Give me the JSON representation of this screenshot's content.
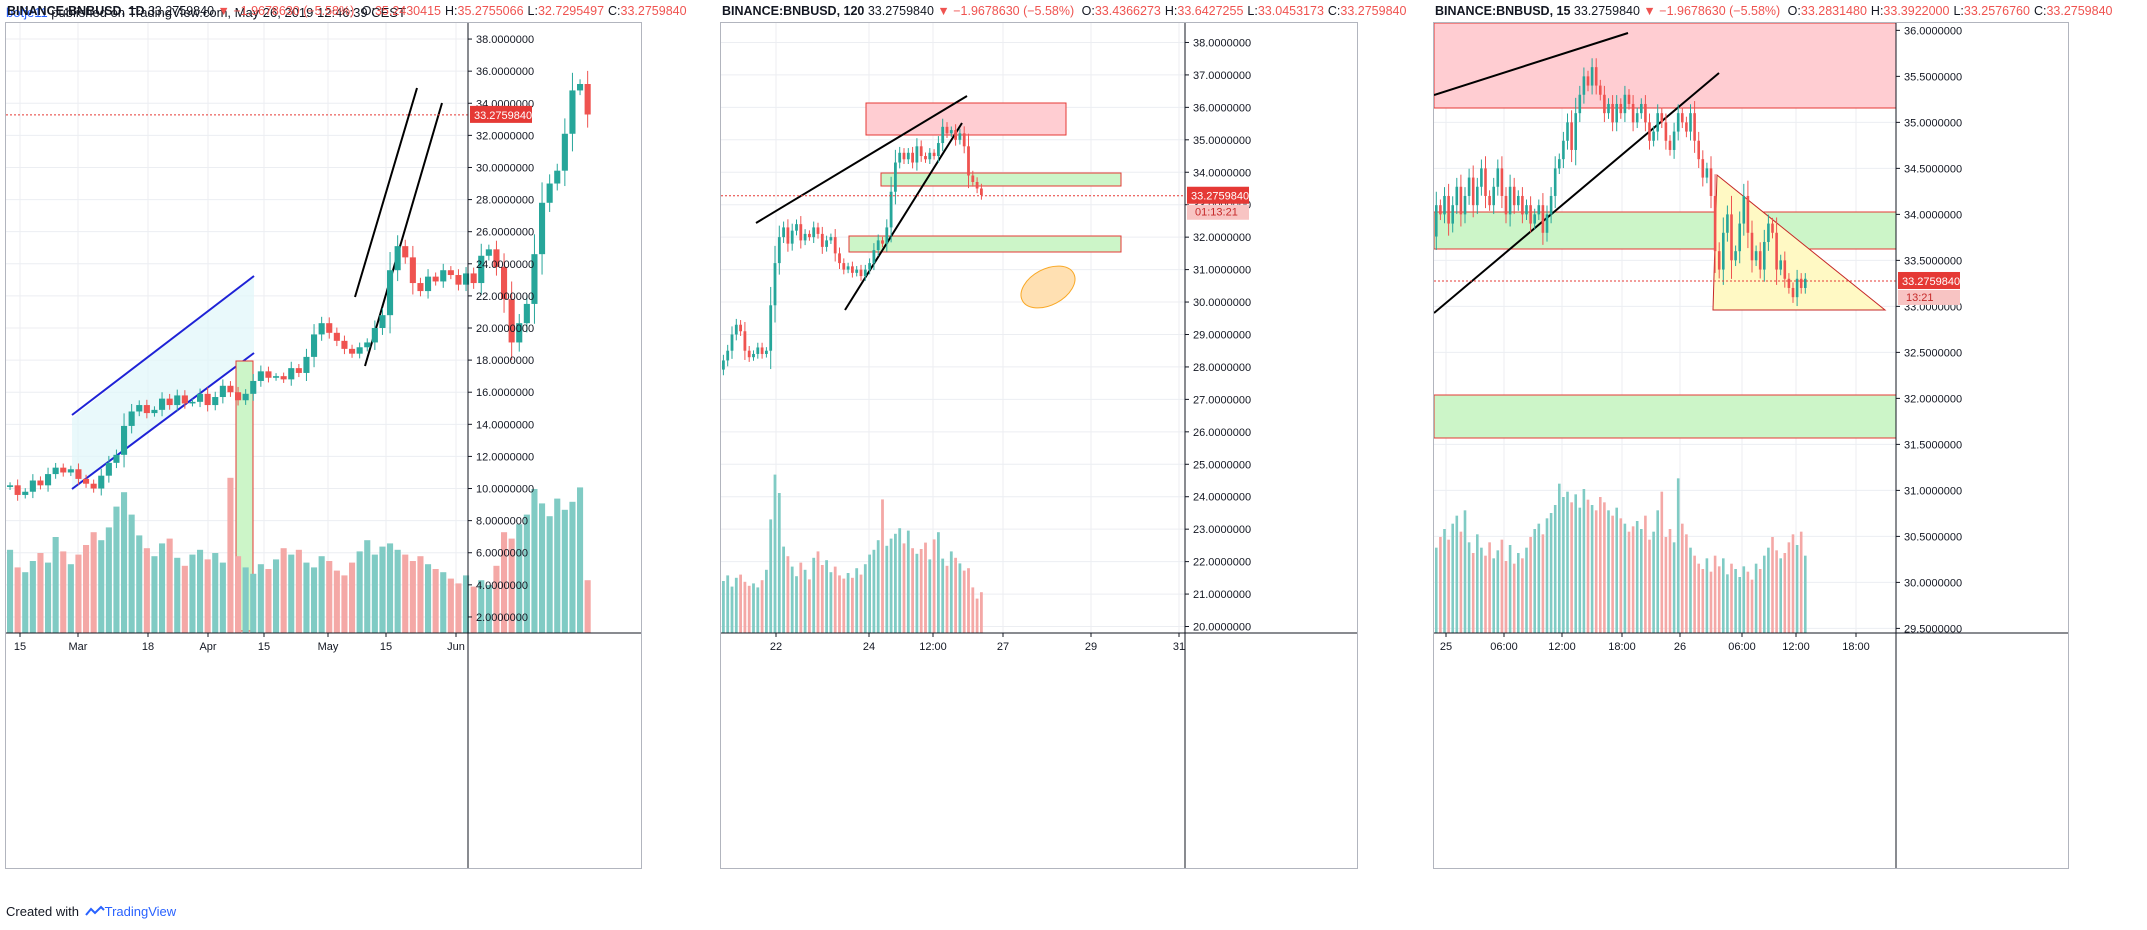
{
  "header": {
    "user": "botje11",
    "text": " published on TradingView.com, May 26, 2019 12:46:39 CEST"
  },
  "footer": {
    "created": "Created with",
    "brand": "TradingView"
  },
  "colors": {
    "up": "#26a69a",
    "down": "#ef5350",
    "upVol": "#80cbc4",
    "downVol": "#f4a8a6",
    "grid": "#eceef2",
    "axis": "#131722",
    "priceLine": "#e53935",
    "resistanceZone": "#ffcdd2",
    "supportZone": "#ccf5c8",
    "triangle": "#fff9c4",
    "ellipse": "#ffe0b2"
  },
  "chart_data": [
    {
      "type": "candlestick",
      "symbol": "BINANCE:BNBUSD, 1D",
      "last": "33.2759840",
      "change": "▼ −1.9678630 (−5.58%)",
      "ohlc": {
        "O": "35.2430415",
        "H": "35.2755066",
        "L": "32.7295497",
        "C": "33.2759840"
      },
      "price_label": "33.2759840",
      "ylim": [
        1,
        39
      ],
      "y_ticks": [
        "2.0000000",
        "4.0000000",
        "6.0000000",
        "8.0000000",
        "10.0000000",
        "12.0000000",
        "14.0000000",
        "16.0000000",
        "18.0000000",
        "20.0000000",
        "22.0000000",
        "24.0000000",
        "26.0000000",
        "28.0000000",
        "30.0000000",
        "32.0000000",
        "34.0000000",
        "36.0000000",
        "38.0000000"
      ],
      "x_ticks": [
        "15",
        "Mar",
        "18",
        "Apr",
        "15",
        "May",
        "15",
        "Jun"
      ],
      "closes": [
        10.2,
        9.6,
        9.8,
        10.5,
        10.2,
        10.9,
        11.3,
        11.0,
        11.2,
        10.6,
        10.3,
        10.0,
        10.8,
        11.6,
        12.1,
        13.9,
        14.8,
        15.2,
        14.7,
        14.9,
        15.6,
        15.2,
        15.8,
        15.3,
        15.4,
        15.9,
        15.2,
        15.7,
        16.4,
        16.0,
        15.5,
        15.9,
        16.7,
        17.3,
        16.9,
        17.0,
        16.8,
        17.5,
        17.2,
        18.2,
        19.6,
        20.3,
        19.7,
        19.2,
        18.7,
        18.4,
        18.8,
        19.1,
        20.0,
        20.8,
        23.6,
        25.1,
        24.4,
        22.8,
        22.3,
        23.2,
        22.9,
        23.6,
        23.3,
        22.7,
        23.4,
        22.8,
        24.5,
        24.9,
        23.8,
        21.8,
        19.1,
        20.3,
        21.5,
        24.6,
        27.8,
        29.0,
        29.8,
        32.1,
        34.8,
        35.2,
        33.3
      ],
      "volume": [
        5.2,
        4.1,
        3.8,
        4.5,
        5.0,
        4.4,
        6.0,
        5.1,
        4.3,
        4.9,
        5.5,
        6.3,
        5.8,
        6.6,
        7.9,
        8.8,
        7.4,
        6.1,
        5.3,
        4.8,
        5.6,
        5.9,
        4.7,
        4.2,
        4.9,
        5.2,
        4.6,
        5.0,
        4.4,
        9.7,
        4.8,
        4.1,
        3.7,
        4.3,
        4.0,
        4.6,
        5.3,
        4.9,
        5.2,
        4.4,
        4.1,
        4.8,
        4.5,
        3.9,
        3.6,
        4.4,
        5.1,
        5.8,
        4.9,
        5.4,
        5.6,
        5.2,
        4.9,
        4.5,
        4.8,
        4.3,
        4.0,
        3.8,
        3.4,
        3.1,
        3.6,
        2.9,
        3.3,
        3.0,
        4.2,
        6.3,
        5.9,
        6.8,
        7.4,
        9.0,
        8.1,
        7.3,
        8.4,
        7.7,
        8.2,
        9.1,
        3.3
      ],
      "annotations": [
        "ascending channel (blue)",
        "rising wedge (black)",
        "green measured move box"
      ]
    },
    {
      "type": "candlestick",
      "symbol": "BINANCE:BNBUSD, 120",
      "last": "33.2759840",
      "change": "▼ −1.9678630 (−5.58%)",
      "ohlc": {
        "O": "33.4366273",
        "H": "33.6427255",
        "L": "33.0453173",
        "C": "33.2759840"
      },
      "price_label": "33.2759840",
      "countdown": "01:13:21",
      "ylim": [
        19.8,
        38.6
      ],
      "y_ticks": [
        "20.0000000",
        "21.0000000",
        "22.0000000",
        "23.0000000",
        "24.0000000",
        "25.0000000",
        "26.0000000",
        "27.0000000",
        "28.0000000",
        "29.0000000",
        "30.0000000",
        "31.0000000",
        "32.0000000",
        "33.0000000",
        "34.0000000",
        "35.0000000",
        "36.0000000",
        "37.0000000",
        "38.0000000"
      ],
      "x_ticks": [
        "22",
        "24",
        "12:00",
        "27",
        "29",
        "31"
      ],
      "closes": [
        28.2,
        28.5,
        29.0,
        29.3,
        29.1,
        28.5,
        28.3,
        28.4,
        28.6,
        28.4,
        28.5,
        29.9,
        31.2,
        32.0,
        32.3,
        31.8,
        32.2,
        32.4,
        31.9,
        32.1,
        32.0,
        32.3,
        32.1,
        31.7,
        31.9,
        32.0,
        31.5,
        31.2,
        31.0,
        31.1,
        30.9,
        31.0,
        30.8,
        31.0,
        31.2,
        31.6,
        31.9,
        31.8,
        32.3,
        33.4,
        34.3,
        34.6,
        34.4,
        34.6,
        34.3,
        34.8,
        34.5,
        34.4,
        34.6,
        34.5,
        34.9,
        35.4,
        35.2,
        35.3,
        35.0,
        35.2,
        34.8,
        33.9,
        33.7,
        33.5,
        33.3
      ],
      "volume": [
        6.5,
        7.2,
        5.8,
        6.9,
        7.3,
        6.4,
        5.9,
        6.2,
        5.7,
        6.6,
        7.9,
        14.2,
        19.8,
        17.5,
        10.8,
        9.6,
        8.3,
        7.1,
        8.8,
        7.9,
        6.7,
        9.4,
        10.2,
        8.5,
        9.1,
        7.6,
        8.3,
        7.2,
        6.8,
        7.5,
        6.9,
        8.1,
        7.3,
        8.6,
        9.8,
        10.4,
        11.6,
        16.7,
        10.9,
        11.8,
        12.4,
        13.1,
        11.2,
        12.8,
        10.6,
        9.9,
        10.5,
        11.3,
        9.2,
        11.7,
        12.6,
        9.3,
        8.4,
        10.2,
        9.4,
        8.7,
        7.8,
        8.1,
        5.7,
        4.3,
        5.1
      ],
      "annotations": [
        "resistance zone",
        "support zone",
        "rising wedge",
        "ellipse target"
      ]
    },
    {
      "type": "candlestick",
      "symbol": "BINANCE:BNBUSD, 15",
      "last": "33.2759840",
      "change": "▼ −1.9678630 (−5.58%)",
      "ohlc": {
        "O": "33.2831480",
        "H": "33.3922000",
        "L": "33.2576760",
        "C": "33.2759840"
      },
      "price_label": "33.2759840",
      "countdown": "13:21",
      "ylim": [
        29.45,
        36.08
      ],
      "y_ticks": [
        "29.5000000",
        "30.0000000",
        "30.5000000",
        "31.0000000",
        "31.5000000",
        "32.0000000",
        "32.5000000",
        "33.0000000",
        "33.5000000",
        "34.0000000",
        "34.5000000",
        "35.0000000",
        "35.5000000",
        "36.0000000"
      ],
      "x_ticks": [
        "25",
        "06:00",
        "12:00",
        "18:00",
        "26",
        "06:00",
        "12:00",
        "18:00"
      ],
      "closes": [
        34.1,
        34.0,
        34.2,
        33.9,
        34.1,
        34.3,
        34.0,
        34.2,
        34.4,
        34.1,
        34.3,
        34.5,
        34.2,
        34.1,
        34.3,
        34.5,
        34.2,
        34.0,
        34.3,
        34.1,
        34.2,
        34.0,
        34.1,
        33.9,
        34.0,
        34.1,
        33.8,
        34.0,
        34.2,
        34.5,
        34.6,
        34.8,
        35.0,
        34.7,
        35.1,
        35.3,
        35.5,
        35.4,
        35.6,
        35.4,
        35.3,
        35.1,
        35.2,
        35.0,
        35.2,
        35.1,
        35.3,
        35.2,
        35.0,
        35.1,
        35.2,
        35.0,
        34.8,
        34.9,
        35.1,
        35.0,
        34.8,
        34.7,
        34.9,
        35.1,
        35.0,
        34.9,
        35.1,
        34.8,
        34.6,
        34.4,
        34.5,
        34.2,
        33.6,
        33.4,
        33.8,
        34.0,
        33.5,
        33.6,
        33.9,
        34.2,
        33.8,
        33.5,
        33.6,
        33.4,
        33.7,
        33.9,
        33.8,
        33.4,
        33.5,
        33.3,
        33.2,
        33.1,
        33.3,
        33.2,
        33.3
      ],
      "volume": [
        3.2,
        3.6,
        3.9,
        3.5,
        4.1,
        4.4,
        3.8,
        4.6,
        3.4,
        3.0,
        3.7,
        3.2,
        2.9,
        3.4,
        2.8,
        3.1,
        3.5,
        2.7,
        3.3,
        2.6,
        3.0,
        2.8,
        3.2,
        3.6,
        3.9,
        4.1,
        3.7,
        4.3,
        4.5,
        4.8,
        5.6,
        5.1,
        5.3,
        4.9,
        5.2,
        4.7,
        5.4,
        5.0,
        4.8,
        4.6,
        5.1,
        4.9,
        4.6,
        4.4,
        4.7,
        4.3,
        4.1,
        3.8,
        4.0,
        4.2,
        3.9,
        4.4,
        3.5,
        3.8,
        4.6,
        5.3,
        3.6,
        3.9,
        3.4,
        5.8,
        4.1,
        3.7,
        3.2,
        2.9,
        2.6,
        2.4,
        2.8,
        2.3,
        2.9,
        2.5,
        2.8,
        2.2,
        2.6,
        2.4,
        2.1,
        2.5,
        2.3,
        2.0,
        2.6,
        2.4,
        2.9,
        3.2,
        3.6,
        3.1,
        2.8,
        3.0,
        3.4,
        3.7,
        3.3,
        3.8,
        2.9
      ],
      "annotations": [
        "resistance zone",
        "support zones",
        "descending triangle",
        "broken trendlines"
      ]
    }
  ]
}
